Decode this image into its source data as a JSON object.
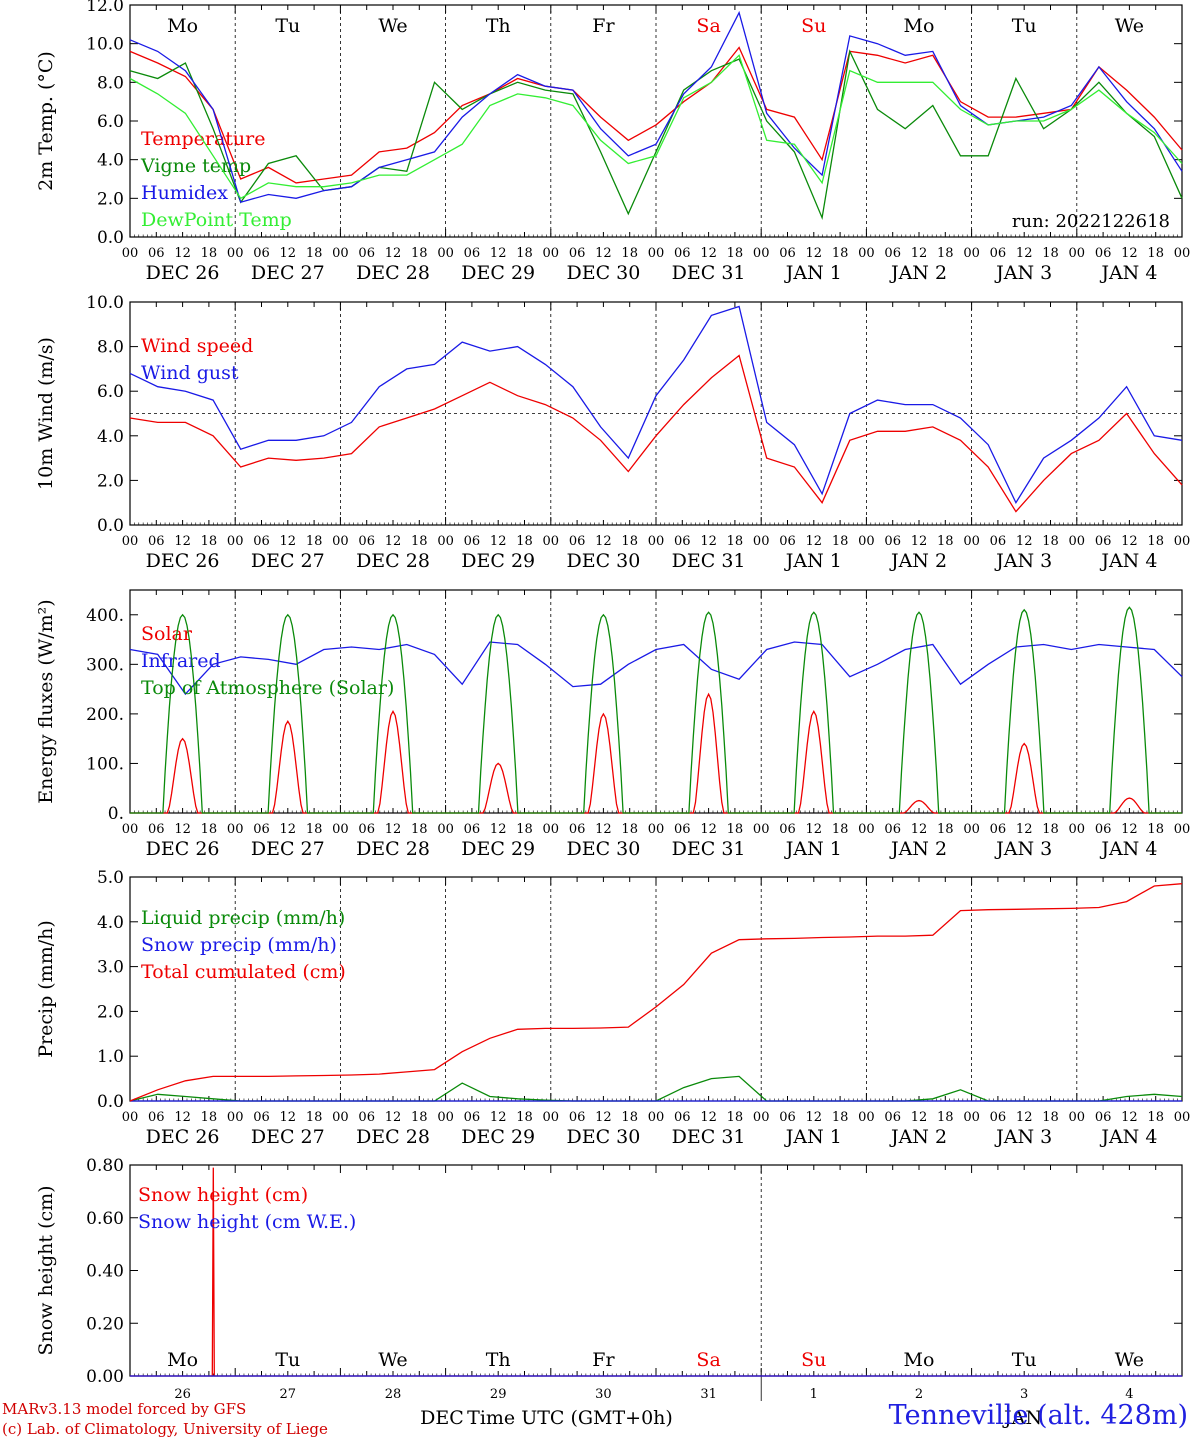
{
  "colors": {
    "red": "#ee0000",
    "green": "#0a8a0a",
    "blue": "#1a1ae6",
    "lightgreen": "#33ee33",
    "axis": "#000000"
  },
  "footer": {
    "credit_line1": "MARv3.13 model forced by GFS",
    "credit_line2": "(c) Lab. of Climatology, University of Liege",
    "station": "Tenneville (alt. 428m)",
    "xlabel": "Time UTC (GMT+0h)",
    "dec_label": "DEC",
    "jan_label": "JAN"
  },
  "chart_data": [
    {
      "type": "line",
      "ylabel": "2m Temp. (°C)",
      "ylim": [
        0,
        12
      ],
      "yticks": [
        "0.0",
        "2.0",
        "4.0",
        "6.0",
        "8.0",
        "10.0",
        "12.0"
      ],
      "ytick_values": [
        0,
        2,
        4,
        6,
        8,
        10,
        12
      ],
      "run_label": "run: 2022122618",
      "weekday_labels": [
        "Mo",
        "Tu",
        "We",
        "Th",
        "Fr",
        "Sa",
        "Su",
        "Mo",
        "Tu",
        "We"
      ],
      "weekend_days": [
        5,
        6
      ],
      "x_hours_step": 6,
      "series": [
        {
          "name": "Temperature",
          "color": "red",
          "values": [
            9.6,
            9.0,
            8.3,
            6.6,
            3.0,
            3.6,
            2.8,
            3.0,
            3.2,
            4.4,
            4.6,
            5.4,
            6.8,
            7.4,
            8.2,
            7.8,
            7.6,
            6.2,
            5.0,
            5.8,
            7.0,
            8.0,
            9.8,
            6.6,
            6.2,
            4.0,
            9.6,
            9.4,
            9.0,
            9.4,
            7.0,
            6.2,
            6.2,
            6.4,
            6.6,
            8.8,
            7.6,
            6.2,
            4.5
          ]
        },
        {
          "name": "Vigne temp",
          "color": "green",
          "values": [
            8.6,
            8.2,
            9.0,
            5.6,
            1.8,
            3.8,
            4.2,
            2.4,
            2.6,
            3.6,
            3.4,
            8.0,
            6.6,
            7.4,
            8.0,
            7.6,
            7.4,
            4.4,
            1.2,
            4.4,
            7.6,
            8.6,
            9.2,
            6.0,
            4.4,
            1.0,
            9.6,
            6.6,
            5.6,
            6.8,
            4.2,
            4.2,
            8.2,
            5.6,
            6.6,
            8.0,
            6.4,
            5.2,
            2.0
          ]
        },
        {
          "name": "Humidex",
          "color": "blue",
          "values": [
            10.2,
            9.6,
            8.6,
            6.6,
            1.8,
            2.2,
            2.0,
            2.4,
            2.6,
            3.6,
            4.0,
            4.4,
            6.2,
            7.4,
            8.4,
            7.8,
            7.6,
            5.6,
            4.2,
            4.8,
            7.4,
            8.8,
            11.6,
            6.4,
            4.6,
            3.2,
            10.4,
            10.0,
            9.4,
            9.6,
            6.8,
            5.8,
            6.0,
            6.2,
            6.8,
            8.8,
            7.0,
            5.6,
            3.4
          ]
        },
        {
          "name": "DewPoint Temp",
          "color": "lightgreen",
          "values": [
            8.2,
            7.4,
            6.4,
            4.2,
            2.0,
            2.8,
            2.6,
            2.6,
            2.8,
            3.2,
            3.2,
            4.0,
            4.8,
            6.8,
            7.4,
            7.2,
            6.8,
            5.0,
            3.8,
            4.2,
            7.2,
            8.0,
            9.4,
            5.0,
            4.8,
            2.8,
            8.6,
            8.0,
            8.0,
            8.0,
            6.6,
            5.8,
            6.0,
            6.0,
            6.6,
            7.6,
            6.4,
            5.4,
            3.8
          ]
        }
      ]
    },
    {
      "type": "line",
      "ylabel": "10m Wind (m/s)",
      "ylim": [
        0,
        10
      ],
      "yticks": [
        "0.0",
        "2.0",
        "4.0",
        "6.0",
        "8.0",
        "10.0"
      ],
      "ytick_values": [
        0,
        2,
        4,
        6,
        8,
        10
      ],
      "reference_line": 5,
      "series": [
        {
          "name": "Wind speed",
          "color": "red",
          "values": [
            4.8,
            4.6,
            4.6,
            4.0,
            2.6,
            3.0,
            2.9,
            3.0,
            3.2,
            4.4,
            4.8,
            5.2,
            5.8,
            6.4,
            5.8,
            5.4,
            4.8,
            3.8,
            2.4,
            4.0,
            5.4,
            6.6,
            7.6,
            3.0,
            2.6,
            1.0,
            3.8,
            4.2,
            4.2,
            4.4,
            3.8,
            2.6,
            0.6,
            2.0,
            3.2,
            3.8,
            5.0,
            3.2,
            1.8
          ]
        },
        {
          "name": "Wind gust",
          "color": "blue",
          "values": [
            6.8,
            6.2,
            6.0,
            5.6,
            3.4,
            3.8,
            3.8,
            4.0,
            4.6,
            6.2,
            7.0,
            7.2,
            8.2,
            7.8,
            8.0,
            7.2,
            6.2,
            4.4,
            3.0,
            5.8,
            7.4,
            9.4,
            9.8,
            4.6,
            3.6,
            1.4,
            5.0,
            5.6,
            5.4,
            5.4,
            4.8,
            3.6,
            1.0,
            3.0,
            3.8,
            4.8,
            6.2,
            4.0,
            3.8
          ]
        }
      ]
    },
    {
      "type": "line",
      "ylabel": "Energy fluxes (W/m²)",
      "ylim": [
        0,
        450
      ],
      "yticks": [
        "0.",
        "100.",
        "200.",
        "300.",
        "400."
      ],
      "ytick_values": [
        0,
        100,
        200,
        300,
        400
      ],
      "series": [
        {
          "name": "Solar",
          "color": "red",
          "daily_peaks": [
            150,
            185,
            205,
            100,
            200,
            240,
            205,
            25,
            140,
            30
          ]
        },
        {
          "name": "Infrared",
          "color": "blue",
          "values": [
            330,
            320,
            240,
            300,
            315,
            310,
            300,
            330,
            335,
            330,
            340,
            320,
            260,
            345,
            340,
            300,
            255,
            260,
            300,
            330,
            340,
            290,
            270,
            330,
            345,
            340,
            275,
            300,
            330,
            340,
            260,
            300,
            335,
            340,
            330,
            340,
            335,
            330,
            275
          ]
        },
        {
          "name": "Top of Atmosphere (Solar)",
          "color": "green",
          "daily_peaks": [
            400,
            400,
            400,
            400,
            400,
            405,
            405,
            405,
            410,
            415
          ]
        }
      ]
    },
    {
      "type": "line",
      "ylabel": "Precip (mm/h)",
      "ylim": [
        0,
        5
      ],
      "yticks": [
        "0.0",
        "1.0",
        "2.0",
        "3.0",
        "4.0",
        "5.0"
      ],
      "ytick_values": [
        0,
        1,
        2,
        3,
        4,
        5
      ],
      "series": [
        {
          "name": "Liquid precip (mm/h)",
          "color": "green",
          "values": [
            0,
            0.15,
            0.1,
            0.05,
            0,
            0,
            0,
            0,
            0,
            0,
            0,
            0,
            0.4,
            0.1,
            0.05,
            0.02,
            0,
            0,
            0,
            0,
            0.3,
            0.5,
            0.55,
            0,
            0,
            0,
            0,
            0,
            0,
            0.05,
            0.25,
            0,
            0,
            0,
            0,
            0,
            0.1,
            0.15,
            0.1
          ]
        },
        {
          "name": "Snow precip (mm/h)",
          "color": "blue",
          "values": [
            0,
            0,
            0,
            0,
            0,
            0,
            0,
            0,
            0,
            0,
            0,
            0,
            0,
            0,
            0,
            0,
            0,
            0,
            0,
            0,
            0,
            0,
            0,
            0,
            0,
            0,
            0,
            0,
            0,
            0,
            0,
            0,
            0,
            0,
            0,
            0,
            0,
            0,
            0
          ]
        },
        {
          "name": "Total cumulated (cm)",
          "color": "red",
          "values": [
            0,
            0.25,
            0.45,
            0.55,
            0.55,
            0.55,
            0.56,
            0.57,
            0.58,
            0.6,
            0.65,
            0.7,
            1.1,
            1.4,
            1.6,
            1.62,
            1.62,
            1.63,
            1.65,
            2.1,
            2.6,
            3.3,
            3.6,
            3.62,
            3.63,
            3.65,
            3.66,
            3.68,
            3.68,
            3.7,
            4.25,
            4.27,
            4.28,
            4.29,
            4.3,
            4.32,
            4.45,
            4.8,
            4.85
          ]
        }
      ]
    },
    {
      "type": "line",
      "ylabel": "Snow height (cm)",
      "ylim": [
        0,
        0.8
      ],
      "yticks": [
        "0.00",
        "0.20",
        "0.40",
        "0.60",
        "0.80"
      ],
      "ytick_values": [
        0,
        0.2,
        0.4,
        0.6,
        0.8
      ],
      "weekday_labels": [
        "Mo",
        "Tu",
        "We",
        "Th",
        "Fr",
        "Sa",
        "Su",
        "Mo",
        "Tu",
        "We"
      ],
      "day_numbers": [
        "26",
        "27",
        "28",
        "29",
        "30",
        "31",
        "1",
        "2",
        "3",
        "4"
      ],
      "series": [
        {
          "name": "Snow height (cm)",
          "color": "red",
          "spike_x_hours": 19,
          "spike_value": 0.79
        },
        {
          "name": "Snow height (cm W.E.)",
          "color": "blue",
          "values": [
            0,
            0
          ]
        }
      ]
    }
  ],
  "date_labels": [
    "DEC 26",
    "DEC 27",
    "DEC 28",
    "DEC 29",
    "DEC 30",
    "DEC 31",
    "JAN  1",
    "JAN  2",
    "JAN  3",
    "JAN  4"
  ],
  "hour_labels": [
    "00",
    "06",
    "12",
    "18"
  ]
}
